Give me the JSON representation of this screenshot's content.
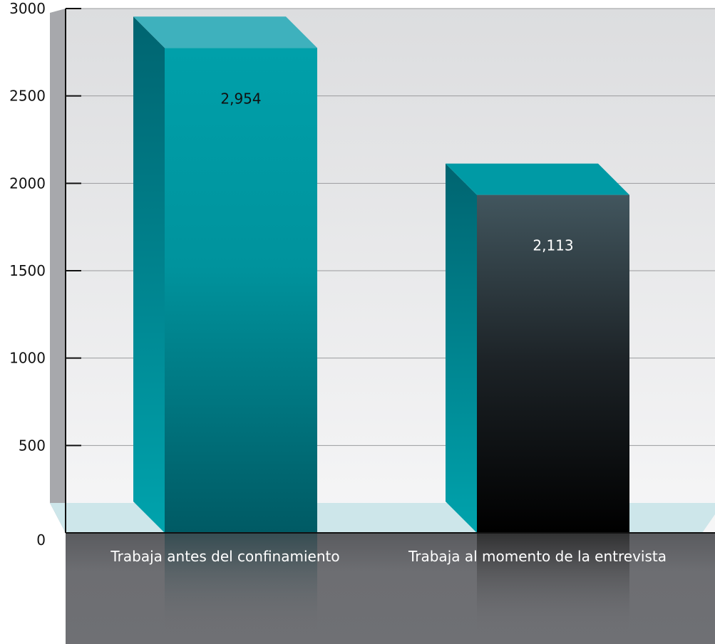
{
  "chart_data": {
    "type": "bar",
    "categories": [
      "Trabaja antes del confinamiento",
      "Trabaja al momento de la entrevista"
    ],
    "values": [
      2954,
      2113
    ],
    "data_labels": [
      "2,954",
      "2,113"
    ],
    "yticks": [
      0,
      500,
      1000,
      1500,
      2000,
      2500,
      3000
    ],
    "ytick_labels": [
      "0",
      "500",
      "1000",
      "1500",
      "2000",
      "2500",
      "3000"
    ],
    "ylim": [
      0,
      3000
    ],
    "grid": true,
    "colors": {
      "bar1_front_top": "#00a0aa",
      "bar1_front_bottom": "#005c66",
      "bar2_front_top": "#41545c",
      "bar2_front_bottom": "#000000",
      "bar_side": "#007a84",
      "bar_top": "#39b0bc",
      "floor": "#cde6ea",
      "base": "#6d6e72",
      "wall": "#e7e8ea",
      "left_wall": "#a7a8ac"
    }
  }
}
